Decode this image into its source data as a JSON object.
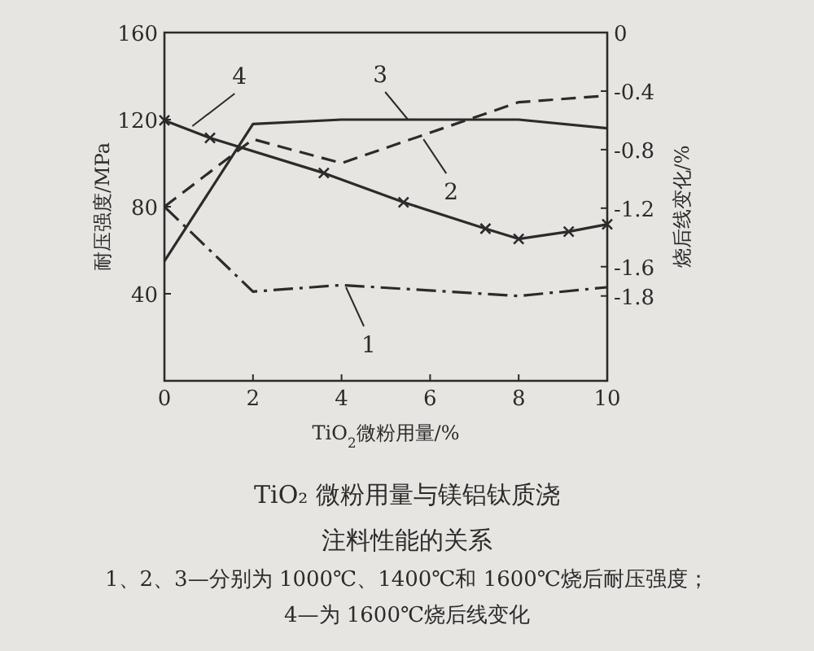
{
  "chart_data": {
    "type": "line",
    "title": "TiO₂ 微粉用量与镁铝钛质浇注料性能的关系",
    "xlabel": "TiO$_{2}$微粉用量/%",
    "ylabel": "耐压强度/MPa",
    "y2label": "烧后线变化/%",
    "xlim": [
      0,
      10
    ],
    "xticks": [
      0,
      2,
      4,
      6,
      8,
      10
    ],
    "ylim": [
      0,
      160
    ],
    "yticks": [
      40,
      80,
      120,
      160
    ],
    "y2lim": [
      -2.38,
      0
    ],
    "y2ticks": [
      0,
      -0.4,
      -0.8,
      -1.2,
      -1.6,
      -1.8
    ],
    "series": [
      {
        "color": "#2b2b2b",
        "line_style": "dashdot",
        "marker": "none",
        "x": [
          0,
          2,
          4,
          8,
          10
        ],
        "values": [
          80,
          41,
          44,
          39,
          43
        ]
      },
      {
        "color": "#2b2b2b",
        "line_style": "dashed",
        "marker": "none",
        "x": [
          0,
          2,
          4,
          8,
          10
        ],
        "values": [
          80,
          111,
          100,
          128,
          131
        ]
      },
      {
        "color": "#2b2b2b",
        "line_style": "solid",
        "marker": "none",
        "x": [
          0,
          2,
          4,
          8,
          10
        ],
        "values": [
          55,
          118,
          120,
          120,
          116
        ]
      },
      {
        "color": "#2b2b2b",
        "line_style": "solid",
        "marker": "cross",
        "axis": "y2",
        "x": [
          0,
          1.03,
          3.6,
          5.4,
          7.25,
          8,
          9.13,
          10
        ],
        "values": [
          -0.6,
          -0.72,
          -0.96,
          -1.16,
          -1.34,
          -1.41,
          -1.36,
          -1.31
        ]
      }
    ],
    "annotations": [
      {
        "text": "1",
        "x": 4.1,
        "y": 43
      },
      {
        "text": "2",
        "x": 5.85,
        "y": 111
      },
      {
        "text": "3",
        "x": 5.5,
        "y": 120
      },
      {
        "text": "4",
        "x": 0.63,
        "y": 117
      },
      "1、2、3—分别为 1000℃、1400℃和 1600℃烧后耐压强度；",
      "4—为 1600℃烧后线变化"
    ],
    "grid": false
  }
}
